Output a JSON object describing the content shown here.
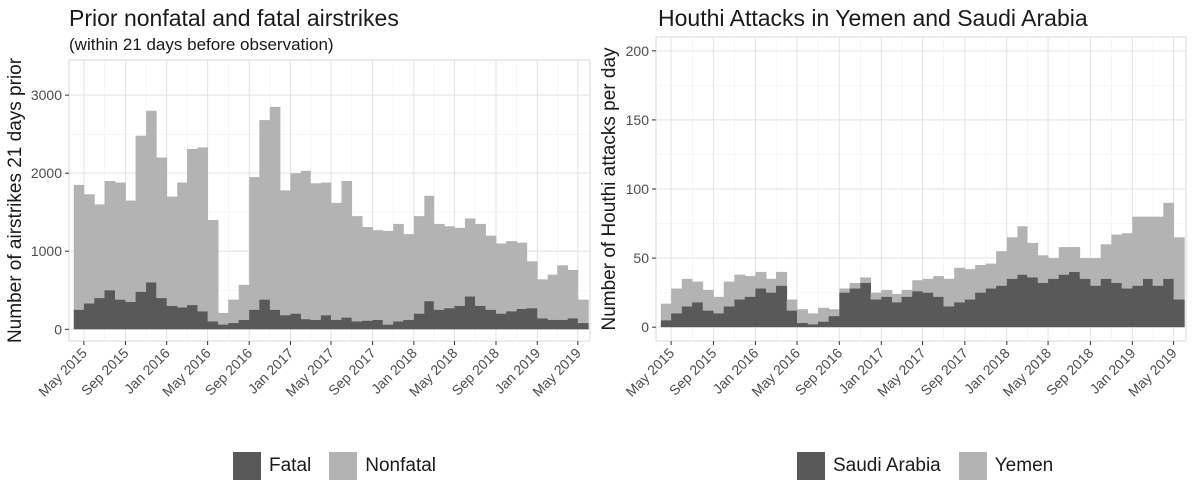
{
  "chart_data": [
    {
      "type": "bar",
      "stacked": true,
      "title": "Prior nonfatal and fatal airstrikes",
      "subtitle": "(within 21 days before observation)",
      "xlabel": "",
      "ylabel": "Number of airstrikes 21 days prior",
      "ylim": [
        -150,
        3450
      ],
      "xlim": [
        "2015-03-18",
        "2019-06-06"
      ],
      "yticks": [
        0,
        1000,
        2000,
        3000
      ],
      "xticks": [
        "May 2015",
        "Sep 2015",
        "Jan 2016",
        "May 2016",
        "Sep 2016",
        "Jan 2017",
        "May 2017",
        "Sep 2017",
        "Jan 2018",
        "May 2018",
        "Sep 2018",
        "Jan 2019",
        "May 2019"
      ],
      "grid": true,
      "legend_position": "bottom",
      "colors": {
        "Fatal": "#595959",
        "Nonfatal": "#b3b3b3"
      },
      "x": [
        "2015-04",
        "2015-05",
        "2015-06",
        "2015-07",
        "2015-08",
        "2015-09",
        "2015-10",
        "2015-11",
        "2015-12",
        "2016-01",
        "2016-02",
        "2016-03",
        "2016-04",
        "2016-05",
        "2016-06",
        "2016-07",
        "2016-08",
        "2016-09",
        "2016-10",
        "2016-11",
        "2016-12",
        "2017-01",
        "2017-02",
        "2017-03",
        "2017-04",
        "2017-05",
        "2017-06",
        "2017-07",
        "2017-08",
        "2017-09",
        "2017-10",
        "2017-11",
        "2017-12",
        "2018-01",
        "2018-02",
        "2018-03",
        "2018-04",
        "2018-05",
        "2018-06",
        "2018-07",
        "2018-08",
        "2018-09",
        "2018-10",
        "2018-11",
        "2018-12",
        "2019-01",
        "2019-02",
        "2019-03",
        "2019-04",
        "2019-05"
      ],
      "series": [
        {
          "name": "Fatal",
          "values": [
            250,
            330,
            400,
            500,
            380,
            350,
            480,
            600,
            400,
            300,
            280,
            310,
            230,
            100,
            60,
            80,
            120,
            250,
            380,
            250,
            180,
            200,
            130,
            120,
            180,
            120,
            150,
            100,
            110,
            120,
            60,
            100,
            120,
            200,
            360,
            250,
            270,
            300,
            420,
            300,
            250,
            200,
            230,
            260,
            270,
            140,
            120,
            120,
            140,
            80
          ]
        },
        {
          "name": "Nonfatal",
          "values": [
            1600,
            1400,
            1200,
            1400,
            1500,
            1300,
            2000,
            2200,
            1800,
            1400,
            1600,
            2000,
            2100,
            1300,
            150,
            300,
            450,
            1700,
            2300,
            2600,
            1600,
            1800,
            1900,
            1750,
            1700,
            1500,
            1750,
            1350,
            1200,
            1150,
            1200,
            1250,
            1100,
            1250,
            1350,
            1100,
            1050,
            1000,
            1000,
            1050,
            950,
            900,
            900,
            850,
            600,
            500,
            580,
            700,
            620,
            300
          ]
        }
      ]
    },
    {
      "type": "bar",
      "stacked": true,
      "title": "Houthi Attacks in Yemen and Saudi Arabia",
      "xlabel": "",
      "ylabel": "Number of Houthi attacks per day",
      "ylim": [
        -10,
        210
      ],
      "xlim": [
        "2015-03-18",
        "2019-06-06"
      ],
      "yticks": [
        0,
        50,
        100,
        150,
        200
      ],
      "xticks": [
        "May 2015",
        "Sep 2015",
        "Jan 2016",
        "May 2016",
        "Sep 2016",
        "Jan 2017",
        "May 2017",
        "Sep 2017",
        "Jan 2018",
        "May 2018",
        "Sep 2018",
        "Jan 2019",
        "May 2019"
      ],
      "grid": true,
      "legend_position": "bottom",
      "colors": {
        "Saudi Arabia": "#595959",
        "Yemen": "#b3b3b3"
      },
      "x": [
        "2015-04",
        "2015-05",
        "2015-06",
        "2015-07",
        "2015-08",
        "2015-09",
        "2015-10",
        "2015-11",
        "2015-12",
        "2016-01",
        "2016-02",
        "2016-03",
        "2016-04",
        "2016-05",
        "2016-06",
        "2016-07",
        "2016-08",
        "2016-09",
        "2016-10",
        "2016-11",
        "2016-12",
        "2017-01",
        "2017-02",
        "2017-03",
        "2017-04",
        "2017-05",
        "2017-06",
        "2017-07",
        "2017-08",
        "2017-09",
        "2017-10",
        "2017-11",
        "2017-12",
        "2018-01",
        "2018-02",
        "2018-03",
        "2018-04",
        "2018-05",
        "2018-06",
        "2018-07",
        "2018-08",
        "2018-09",
        "2018-10",
        "2018-11",
        "2018-12",
        "2019-01",
        "2019-02",
        "2019-03",
        "2019-04",
        "2019-05"
      ],
      "series": [
        {
          "name": "Saudi Arabia",
          "values": [
            5,
            10,
            15,
            18,
            12,
            10,
            15,
            20,
            22,
            28,
            25,
            30,
            12,
            3,
            2,
            4,
            8,
            25,
            28,
            32,
            20,
            22,
            18,
            22,
            26,
            25,
            22,
            15,
            18,
            20,
            25,
            28,
            30,
            35,
            38,
            36,
            32,
            35,
            38,
            40,
            35,
            30,
            35,
            32,
            28,
            30,
            35,
            30,
            35,
            20
          ]
        },
        {
          "name": "Yemen",
          "values": [
            12,
            18,
            20,
            15,
            15,
            12,
            18,
            18,
            15,
            12,
            10,
            10,
            8,
            10,
            8,
            10,
            5,
            3,
            4,
            4,
            5,
            5,
            6,
            5,
            8,
            10,
            15,
            20,
            25,
            22,
            20,
            18,
            25,
            30,
            35,
            25,
            20,
            15,
            20,
            18,
            15,
            20,
            25,
            35,
            40,
            50,
            45,
            50,
            55,
            45
          ]
        }
      ]
    }
  ]
}
